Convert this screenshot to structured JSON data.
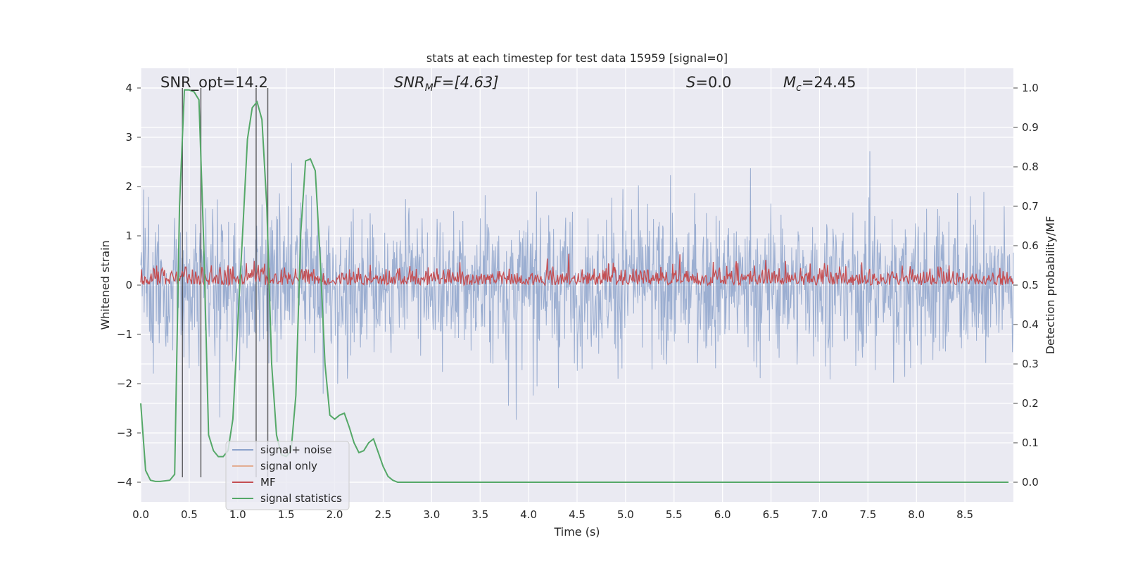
{
  "chart_data": {
    "type": "line",
    "title": "stats at each timestep for test data 15959 [signal=0]",
    "xlabel": "Time (s)",
    "ylabel_left": "Whitened strain",
    "ylabel_right": "Detection probability/MF",
    "xlim": [
      0.0,
      9.0
    ],
    "ylim_left": [
      -4.4,
      4.4
    ],
    "ylim_right": [
      -0.05,
      1.05
    ],
    "x_ticks": [
      "0.0",
      "0.5",
      "1.0",
      "1.5",
      "2.0",
      "2.5",
      "3.0",
      "3.5",
      "4.0",
      "4.5",
      "5.0",
      "5.5",
      "6.0",
      "6.5",
      "7.0",
      "7.5",
      "8.0",
      "8.5"
    ],
    "y_ticks_left": [
      "4",
      "3",
      "2",
      "1",
      "0",
      "−1",
      "−2",
      "−3",
      "−4"
    ],
    "y_ticks_right": [
      "1.0",
      "0.9",
      "0.8",
      "0.7",
      "0.6",
      "0.5",
      "0.4",
      "0.3",
      "0.2",
      "0.1",
      "0.0"
    ],
    "grid": true,
    "legend_position": "lower-left",
    "annotations": {
      "snr_opt": "SNR_opt=14.2",
      "snr_mf_prefix": "SNR",
      "snr_mf_sub": "M",
      "snr_mf_suffix": "F=[4.63]",
      "s_label": "S",
      "s_value": "=0.0",
      "mc_label": "M",
      "mc_sub": "c",
      "mc_value": "=24.45"
    },
    "vertical_markers_x": [
      0.43,
      0.62,
      1.19,
      1.31
    ],
    "series": [
      {
        "name": "signal+ noise",
        "color": "#4c72b0",
        "axis": "left",
        "style": "dense-noise",
        "envelope_approx": [
          -2.2,
          2.2
        ],
        "peak_range": [
          -3.9,
          4.0
        ],
        "n_samples": 1800
      },
      {
        "name": "signal only",
        "color": "#dd8452",
        "axis": "left",
        "values": []
      },
      {
        "name": "MF",
        "color": "#c44e52",
        "axis": "right",
        "style": "noise",
        "range_approx": [
          0.5,
          0.6
        ],
        "peak_range": [
          0.5,
          0.63
        ],
        "n_samples": 1100
      },
      {
        "name": "signal statistics",
        "color": "#55a868",
        "axis": "right",
        "x": [
          0.0,
          0.05,
          0.1,
          0.15,
          0.2,
          0.3,
          0.35,
          0.4,
          0.45,
          0.5,
          0.55,
          0.6,
          0.65,
          0.7,
          0.75,
          0.8,
          0.85,
          0.9,
          0.95,
          1.0,
          1.05,
          1.1,
          1.15,
          1.2,
          1.25,
          1.3,
          1.35,
          1.4,
          1.45,
          1.5,
          1.55,
          1.6,
          1.65,
          1.7,
          1.75,
          1.8,
          1.85,
          1.9,
          1.95,
          2.0,
          2.05,
          2.1,
          2.15,
          2.2,
          2.25,
          2.3,
          2.35,
          2.4,
          2.45,
          2.5,
          2.55,
          2.6,
          2.65,
          2.7,
          2.75,
          2.8,
          2.85,
          2.9,
          3.0,
          3.5,
          4.0,
          5.0,
          6.0,
          7.0,
          8.0,
          8.95
        ],
        "values": [
          0.2,
          0.03,
          0.005,
          0.002,
          0.002,
          0.005,
          0.02,
          0.7,
          0.995,
          0.995,
          0.99,
          0.97,
          0.6,
          0.12,
          0.08,
          0.065,
          0.065,
          0.08,
          0.16,
          0.4,
          0.63,
          0.87,
          0.95,
          0.965,
          0.92,
          0.7,
          0.3,
          0.12,
          0.07,
          0.065,
          0.08,
          0.22,
          0.63,
          0.815,
          0.82,
          0.79,
          0.57,
          0.3,
          0.17,
          0.16,
          0.17,
          0.175,
          0.14,
          0.1,
          0.075,
          0.08,
          0.1,
          0.11,
          0.075,
          0.04,
          0.015,
          0.005,
          0.0,
          0.0,
          0.0,
          0.0,
          0.0,
          0.0,
          0.0,
          0.0,
          0.0,
          0.0,
          0.0,
          0.0,
          0.0,
          0.0
        ]
      }
    ]
  }
}
